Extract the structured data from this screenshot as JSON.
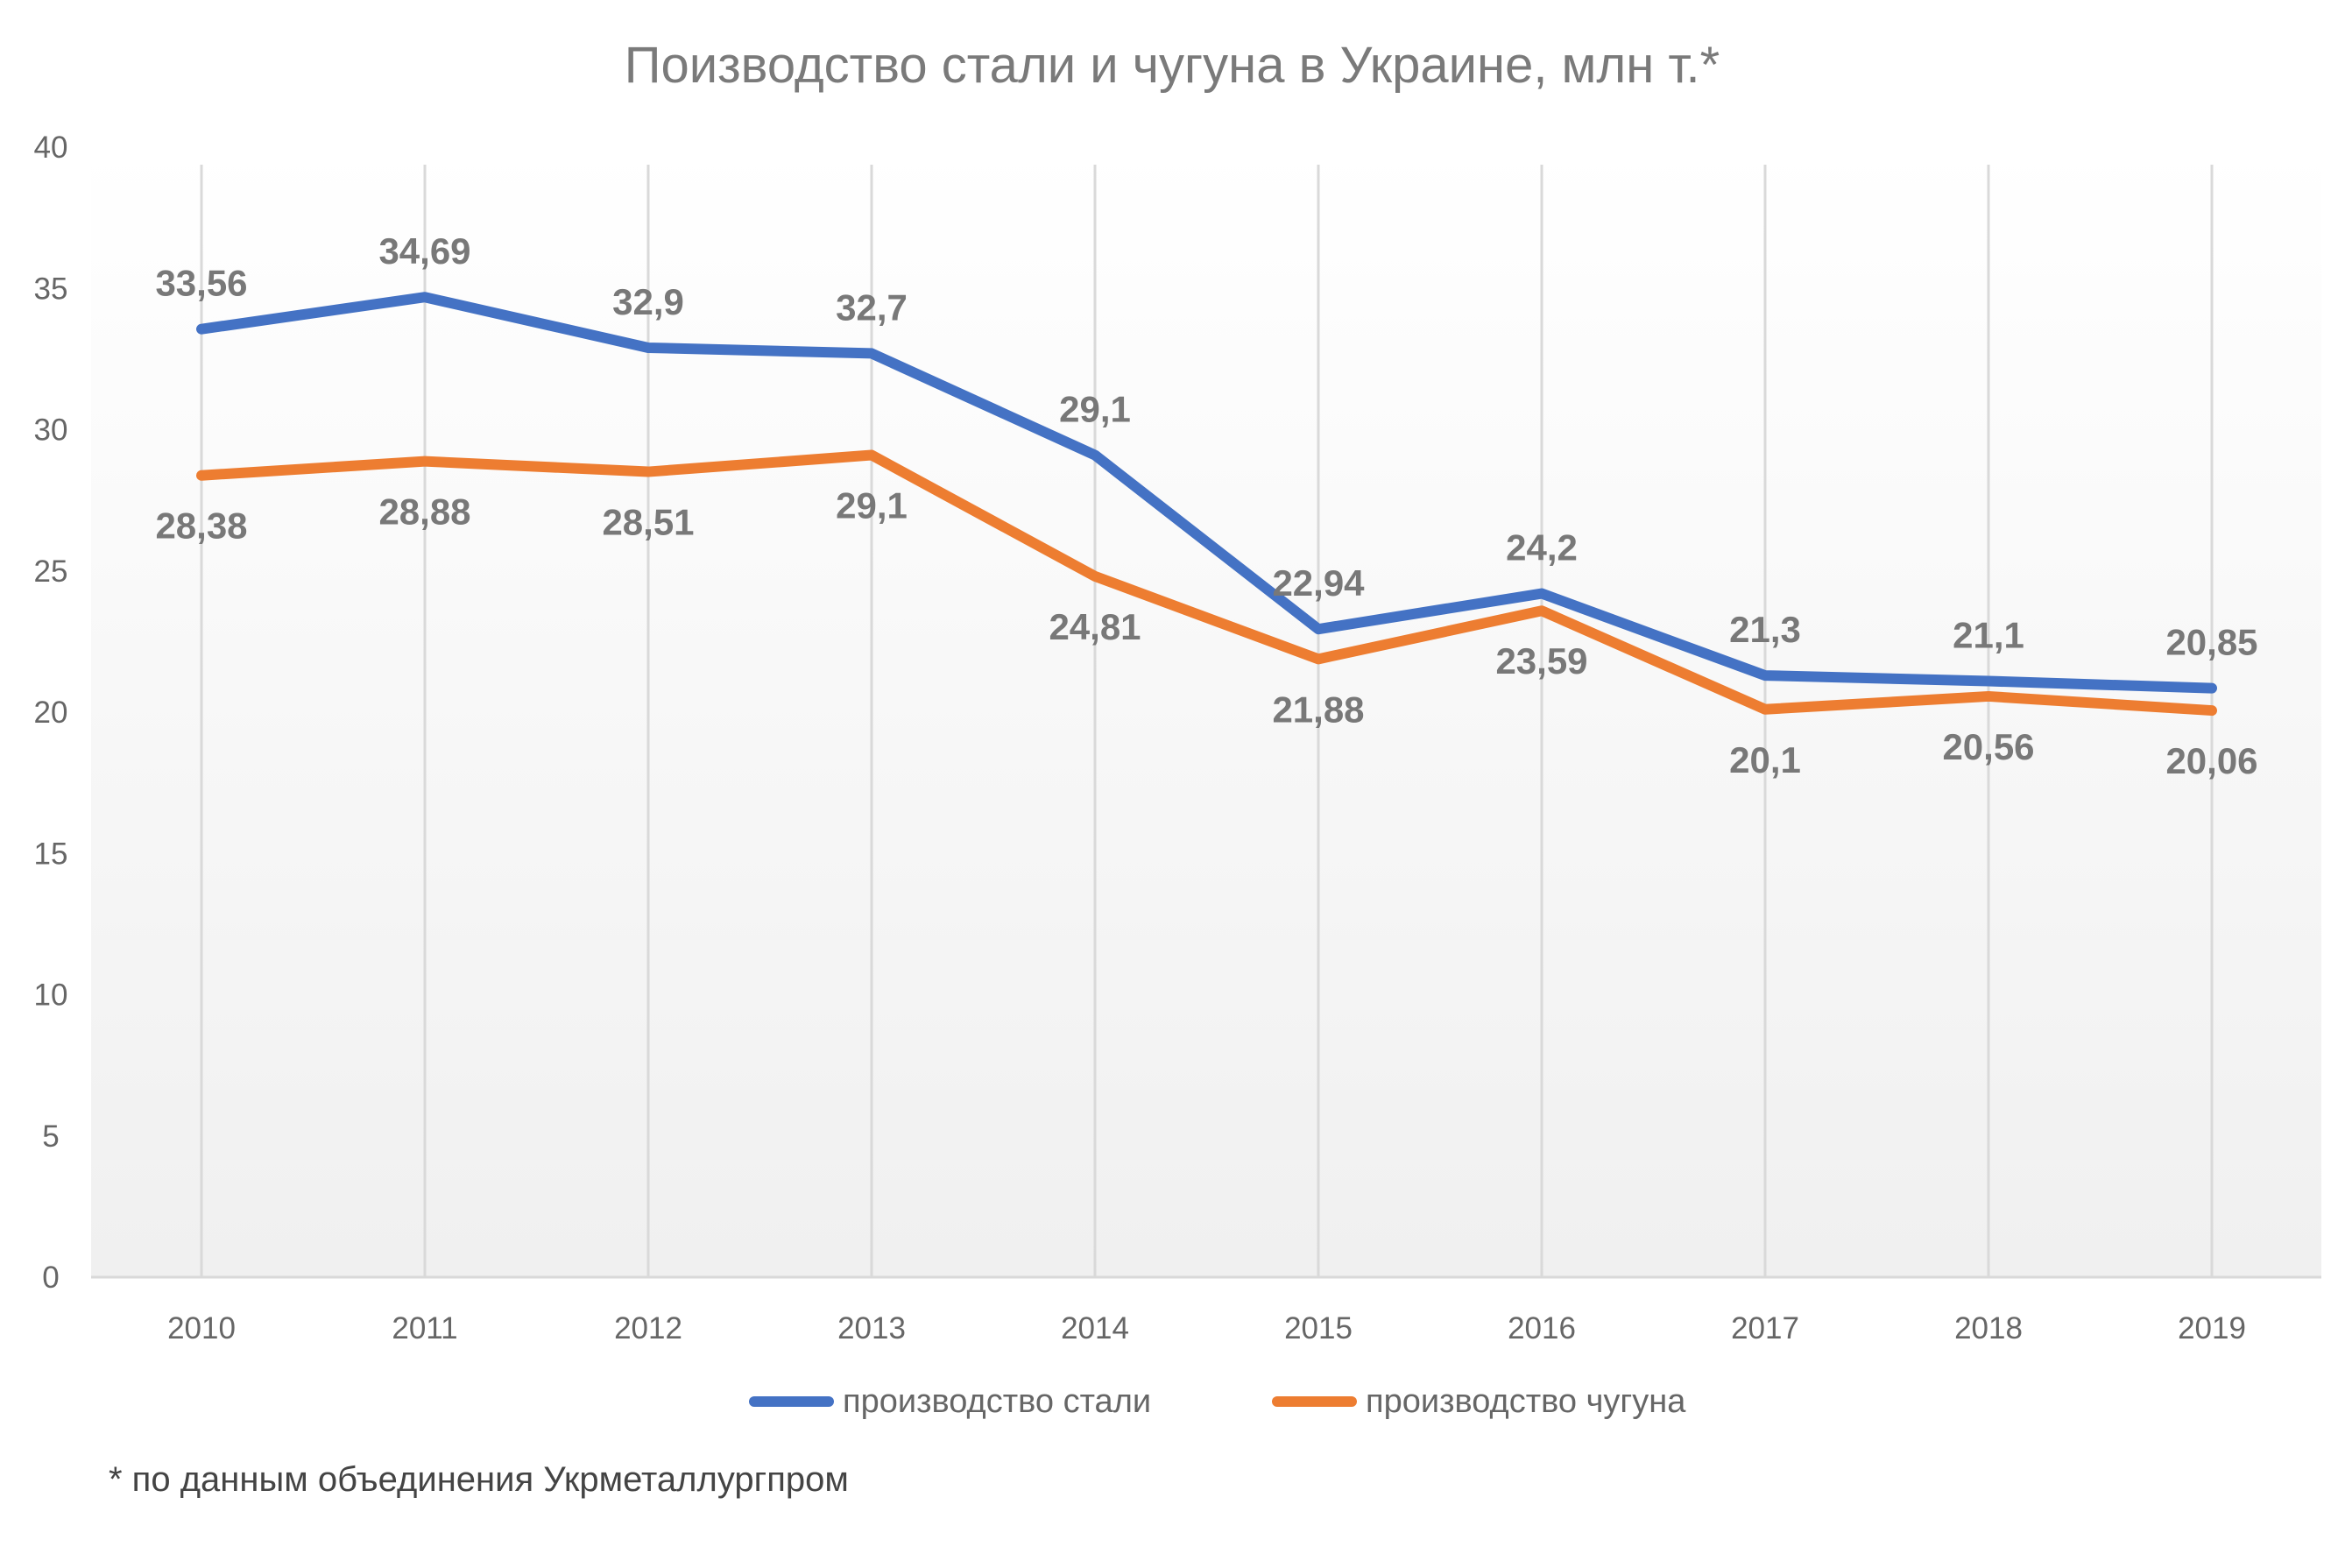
{
  "chart_data": {
    "type": "line",
    "title": "Поизводство стали и чугуна в Украине, млн т.*",
    "xlabel": "",
    "ylabel": "",
    "categories": [
      "2010",
      "2011",
      "2012",
      "2013",
      "2014",
      "2015",
      "2016",
      "2017",
      "2018",
      "2019"
    ],
    "ylim": [
      0,
      40
    ],
    "yticks": [
      0,
      5,
      10,
      15,
      20,
      25,
      30,
      35,
      40
    ],
    "ytick_labels": [
      "0",
      "5",
      "10",
      "15",
      "20",
      "25",
      "30",
      "35",
      "40"
    ],
    "grid": "vertical",
    "legend_position": "bottom",
    "series": [
      {
        "name": "производство стали",
        "color": "#4472c4",
        "values": [
          33.56,
          34.69,
          32.9,
          32.7,
          29.1,
          22.94,
          24.2,
          21.3,
          21.1,
          20.85
        ],
        "labels": [
          "33,56",
          "34,69",
          "32,9",
          "32,7",
          "29,1",
          "22,94",
          "24,2",
          "21,3",
          "21,1",
          "20,85"
        ],
        "label_position": "above"
      },
      {
        "name": "производство чугуна",
        "color": "#ed7d31",
        "values": [
          28.38,
          28.88,
          28.51,
          29.1,
          24.81,
          21.88,
          23.59,
          20.1,
          20.56,
          20.06
        ],
        "labels": [
          "28,38",
          "28,88",
          "28,51",
          "29,1",
          "24,81",
          "21,88",
          "23,59",
          "20,1",
          "20,56",
          "20,06"
        ],
        "label_position": "below"
      }
    ]
  },
  "footnote": "* по данным объединения Укрметаллургпром",
  "colors": {
    "plot_gradient_top": "#ffffff",
    "plot_gradient_bottom": "#f0f0f0",
    "gridline": "#d9d9d9",
    "axis_line": "#d9d9d9"
  }
}
